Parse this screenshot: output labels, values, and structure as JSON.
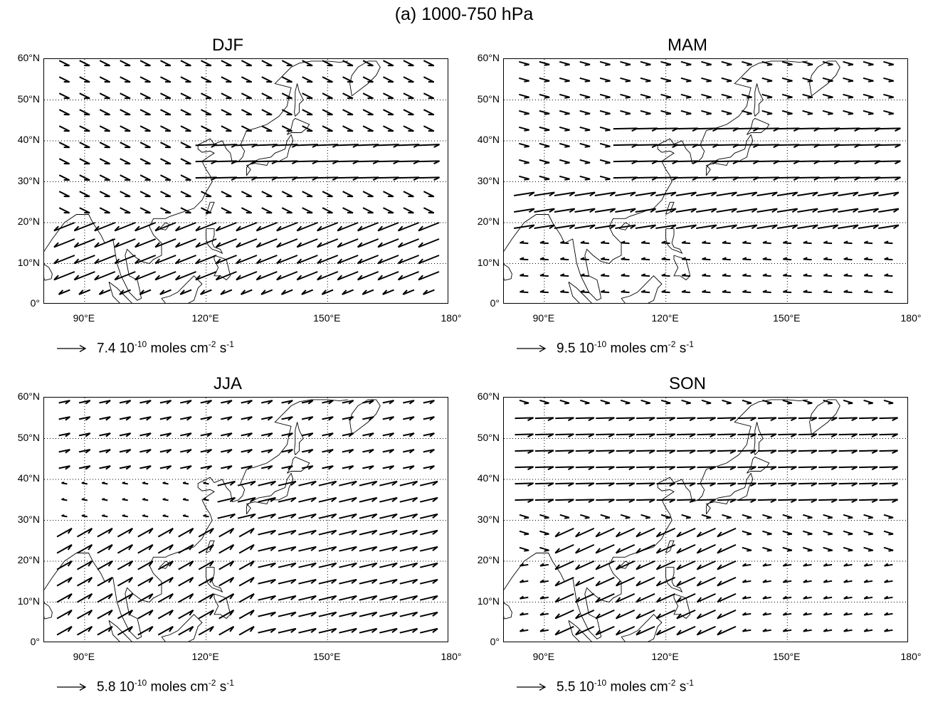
{
  "figure_title": "(a) 1000-750 hPa",
  "axes": {
    "lat_labels": [
      "60°N",
      "50°N",
      "40°N",
      "30°N",
      "20°N",
      "10°N",
      "0°"
    ],
    "lon_labels": [
      "90°E",
      "120°E",
      "150°E",
      "180°"
    ]
  },
  "reference": {
    "unit_exp": "-10",
    "unit_rest": " moles cm",
    "cm_exp": "-2",
    "s_part": " s",
    "s_exp": "-1",
    "ten": " 10"
  },
  "panels": [
    {
      "id": "djf",
      "title": "DJF",
      "ref_value": "7.4"
    },
    {
      "id": "mam",
      "title": "MAM",
      "ref_value": "9.5"
    },
    {
      "id": "jja",
      "title": "JJA",
      "ref_value": "5.8"
    },
    {
      "id": "son",
      "title": "SON",
      "ref_value": "5.5"
    }
  ],
  "chart_data": [
    {
      "type": "map",
      "title": "DJF",
      "map_extent": {
        "lon": [
          80,
          180
        ],
        "lat": [
          0,
          60
        ]
      },
      "quantity": "vector flux",
      "reference_vector": 7.4,
      "pattern": "northwesterly flow over continent, strong westerlies near 30-40N east of Japan, strong northeasterlies 5-20N"
    },
    {
      "type": "map",
      "title": "MAM",
      "map_extent": {
        "lon": [
          80,
          180
        ],
        "lat": [
          0,
          60
        ]
      },
      "quantity": "vector flux",
      "reference_vector": 9.5,
      "pattern": "strong westerlies 20-45N over ocean, weak easterlies in tropics"
    },
    {
      "type": "map",
      "title": "JJA",
      "map_extent": {
        "lon": [
          80,
          180
        ],
        "lat": [
          0,
          60
        ]
      },
      "quantity": "vector flux",
      "reference_vector": 5.8,
      "pattern": "southwesterly monsoon flow toward Japan, westerlies north of 40N"
    },
    {
      "type": "map",
      "title": "SON",
      "map_extent": {
        "lon": [
          80,
          180
        ],
        "lat": [
          0,
          60
        ]
      },
      "quantity": "vector flux",
      "reference_vector": 5.5,
      "pattern": "westerlies 35-55N, northeasterlies over South China Sea"
    }
  ]
}
